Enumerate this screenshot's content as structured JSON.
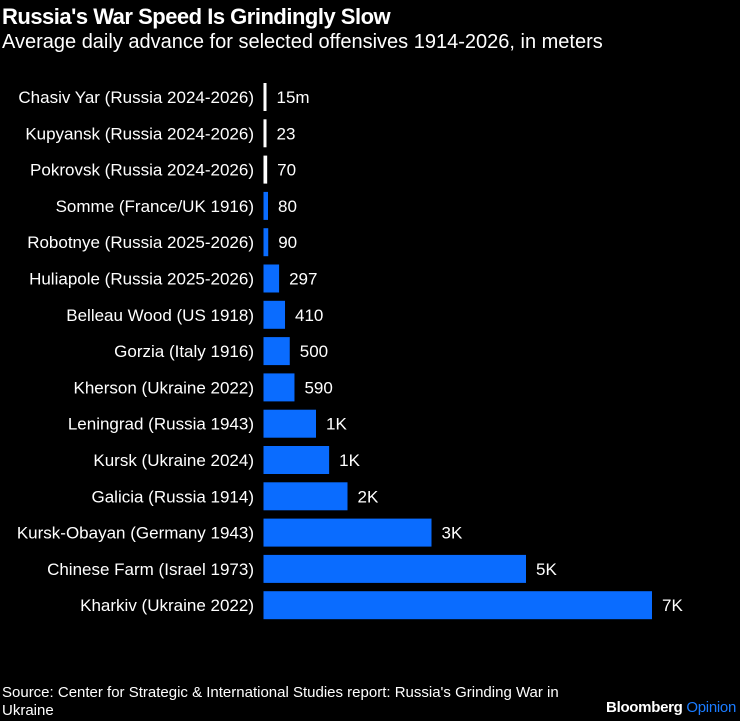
{
  "title": "Russia's War Speed Is Grindingly Slow",
  "subtitle": "Average daily advance for selected offensives 1914-2026, in meters",
  "source": "Source: Center for Strategic & International Studies report: Russia's Grinding War in Ukraine",
  "brand": {
    "name": "Bloomberg",
    "suffix": "Opinion"
  },
  "colors": {
    "background": "#000000",
    "bar": "#0a6cff",
    "highlight_bar": "#ffffff",
    "text": "#ffffff"
  },
  "chart_data": {
    "type": "bar",
    "orientation": "horizontal",
    "title": "Russia's War Speed Is Grindingly Slow",
    "subtitle": "Average daily advance for selected offensives 1914-2026, in meters",
    "categories": [
      "Chasiv Yar (Russia 2024-2026)",
      "Kupyansk (Russia 2024-2026)",
      "Pokrovsk (Russia 2024-2026)",
      "Somme (France/UK 1916)",
      "Robotnye (Russia 2025-2026)",
      "Huliapole (Russia 2025-2026)",
      "Belleau Wood (US 1918)",
      "Gorzia (Italy 1916)",
      "Kherson (Ukraine 2022)",
      "Leningrad (Russia 1943)",
      "Kursk (Ukraine 2024)",
      "Galicia (Russia 1914)",
      "Kursk-Obayan (Germany 1943)",
      "Chinese Farm (Israel 1973)",
      "Kharkiv (Ukraine 2022)"
    ],
    "values": [
      15,
      23,
      70,
      80,
      90,
      297,
      410,
      500,
      590,
      1000,
      1250,
      1600,
      3200,
      5000,
      7400
    ],
    "data_labels": [
      "15m",
      "23",
      "70",
      "80",
      "90",
      "297",
      "410",
      "500",
      "590",
      "1K",
      "1K",
      "2K",
      "3K",
      "5K",
      "7K"
    ],
    "highlighted": [
      true,
      true,
      true,
      false,
      false,
      false,
      false,
      false,
      false,
      false,
      false,
      false,
      false,
      false,
      false
    ],
    "grid": false,
    "legend": "none"
  }
}
